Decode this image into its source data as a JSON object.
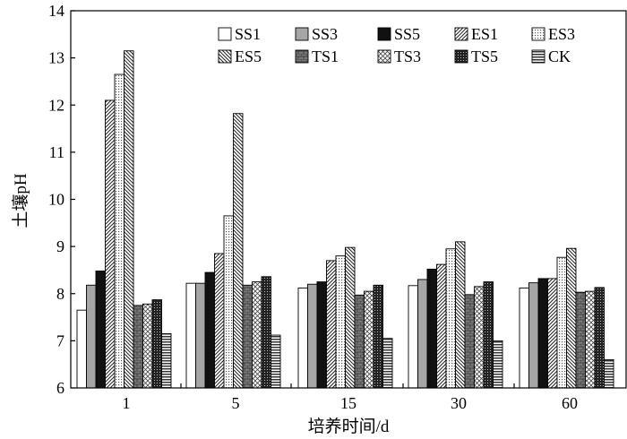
{
  "chart_data": {
    "type": "bar",
    "xlabel": "培养时间/d",
    "ylabel": "土壤pH",
    "ylim": [
      6,
      14
    ],
    "yticks": [
      "6",
      "7",
      "8",
      "9",
      "10",
      "11",
      "12",
      "13",
      "14"
    ],
    "categories": [
      "1",
      "5",
      "15",
      "30",
      "60"
    ],
    "legend_position": "top-right",
    "series": [
      {
        "name": "SS1",
        "pattern": "white",
        "values": [
          7.65,
          8.22,
          8.12,
          8.17,
          8.12
        ]
      },
      {
        "name": "SS3",
        "pattern": "gray",
        "values": [
          8.18,
          8.22,
          8.2,
          8.3,
          8.23
        ]
      },
      {
        "name": "SS5",
        "pattern": "black",
        "values": [
          8.48,
          8.45,
          8.25,
          8.52,
          8.32
        ]
      },
      {
        "name": "ES1",
        "pattern": "diag-right",
        "values": [
          12.1,
          8.85,
          8.7,
          8.62,
          8.32
        ]
      },
      {
        "name": "ES3",
        "pattern": "dots",
        "values": [
          12.65,
          9.65,
          8.8,
          8.95,
          8.77
        ]
      },
      {
        "name": "ES5",
        "pattern": "diag-left",
        "values": [
          13.15,
          11.82,
          8.98,
          9.1,
          8.96
        ]
      },
      {
        "name": "TS1",
        "pattern": "brick",
        "values": [
          7.75,
          8.18,
          7.97,
          7.98,
          8.03
        ]
      },
      {
        "name": "TS3",
        "pattern": "crosshatch",
        "values": [
          7.78,
          8.25,
          8.05,
          8.15,
          8.05
        ]
      },
      {
        "name": "TS5",
        "pattern": "dark-dots",
        "values": [
          7.87,
          8.36,
          8.18,
          8.25,
          8.13
        ]
      },
      {
        "name": "CK",
        "pattern": "hlines",
        "values": [
          7.15,
          7.12,
          7.05,
          7.0,
          6.6
        ]
      }
    ]
  }
}
